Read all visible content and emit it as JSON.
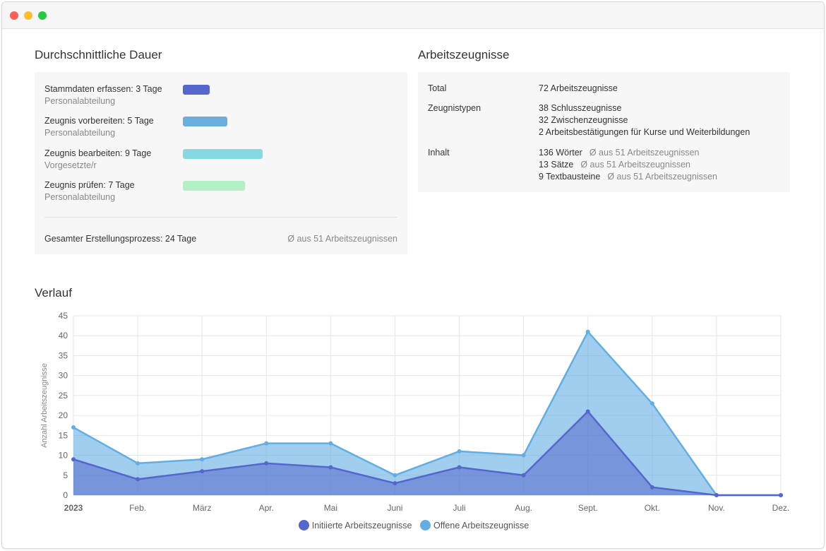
{
  "window": {
    "controls": [
      "close",
      "minimize",
      "maximize"
    ]
  },
  "duration": {
    "title": "Durchschnittliche Dauer",
    "steps": [
      {
        "label": "Stammdaten erfassen: 3 Tage",
        "sub": "Personalabteilung",
        "days": 3,
        "color": "#5566cc"
      },
      {
        "label": "Zeugnis vorbereiten: 5 Tage",
        "sub": "Personalabteilung",
        "days": 5,
        "color": "#6aaee0"
      },
      {
        "label": "Zeugnis bearbeiten: 9 Tage",
        "sub": "Vorgesetzte/r",
        "days": 9,
        "color": "#86d9e0"
      },
      {
        "label": "Zeugnis prüfen: 7 Tage",
        "sub": "Personalabteilung",
        "days": 7,
        "color": "#b3f0c4"
      }
    ],
    "total_label": "Gesamter Erstellungsprozess: 24 Tage",
    "total_note": "Ø aus 51 Arbeitszeugnissen"
  },
  "certificates": {
    "title": "Arbeitszeugnisse",
    "total_label": "Total",
    "total_value": "72 Arbeitszeugnisse",
    "types_label": "Zeugnistypen",
    "types": [
      "38 Schlusszeugnisse",
      "32 Zwischenzeugnisse",
      "2 Arbeitsbestätigungen für Kurse und Weiterbildungen"
    ],
    "content_label": "Inhalt",
    "content": [
      {
        "value": "136 Wörter",
        "note": "Ø aus 51 Arbeitszeugnissen"
      },
      {
        "value": "13 Sätze",
        "note": "Ø aus 51 Arbeitszeugnissen"
      },
      {
        "value": "9 Textbausteine",
        "note": "Ø aus 51 Arbeitszeugnissen"
      }
    ]
  },
  "history": {
    "title": "Verlauf"
  },
  "chart_data": {
    "type": "area",
    "categories": [
      "2023",
      "Feb.",
      "März",
      "Apr.",
      "Mai",
      "Juni",
      "Juli",
      "Aug.",
      "Sept.",
      "Okt.",
      "Nov.",
      "Dez."
    ],
    "series": [
      {
        "name": "Initiierte Arbeitszeugnisse",
        "values": [
          9,
          4,
          6,
          8,
          7,
          3,
          7,
          5,
          21,
          2,
          0,
          0
        ],
        "color": "#5566cc"
      },
      {
        "name": "Offene Arbeitszeugnisse",
        "values": [
          17,
          8,
          9,
          13,
          13,
          5,
          11,
          10,
          41,
          23,
          0,
          0
        ],
        "color": "#62aee2"
      }
    ],
    "ylabel": "Anzahl Arbeitszeugnisse",
    "ylim": [
      0,
      45
    ],
    "yticks": [
      0,
      5,
      10,
      15,
      20,
      25,
      30,
      35,
      40,
      45
    ],
    "grid": true,
    "legend": "bottom"
  }
}
